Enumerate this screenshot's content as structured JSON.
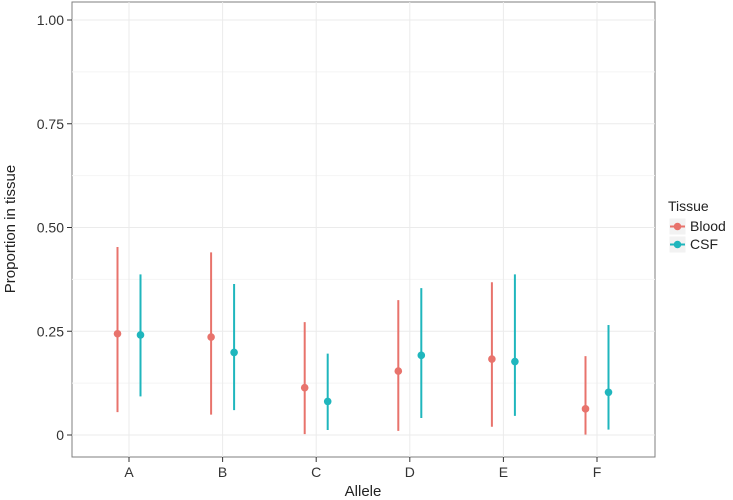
{
  "chart_data": {
    "type": "scatter",
    "subtype": "pointrange",
    "xlabel": "Allele",
    "ylabel": "Proportion in tissue",
    "categories": [
      "A",
      "B",
      "C",
      "D",
      "E",
      "F"
    ],
    "ylim": [
      0,
      1.0
    ],
    "yticks": [
      0,
      0.25,
      0.5,
      0.75,
      1.0
    ],
    "ytick_labels": [
      "0",
      "0.25",
      "0.50",
      "0.75",
      "1.00"
    ],
    "grid": true,
    "legend": {
      "title": "Tissue",
      "position": "right"
    },
    "series": [
      {
        "name": "Blood",
        "color": "#E8736C",
        "values": [
          0.244,
          0.236,
          0.114,
          0.154,
          0.183,
          0.063
        ],
        "lower": [
          0.055,
          0.049,
          0.002,
          0.01,
          0.02,
          0.001
        ],
        "upper": [
          0.453,
          0.44,
          0.272,
          0.325,
          0.368,
          0.19
        ]
      },
      {
        "name": "CSF",
        "color": "#1FB6BD",
        "values": [
          0.241,
          0.199,
          0.081,
          0.192,
          0.177,
          0.103
        ],
        "lower": [
          0.093,
          0.06,
          0.012,
          0.041,
          0.046,
          0.013
        ],
        "upper": [
          0.387,
          0.364,
          0.196,
          0.354,
          0.387,
          0.265
        ]
      }
    ]
  }
}
